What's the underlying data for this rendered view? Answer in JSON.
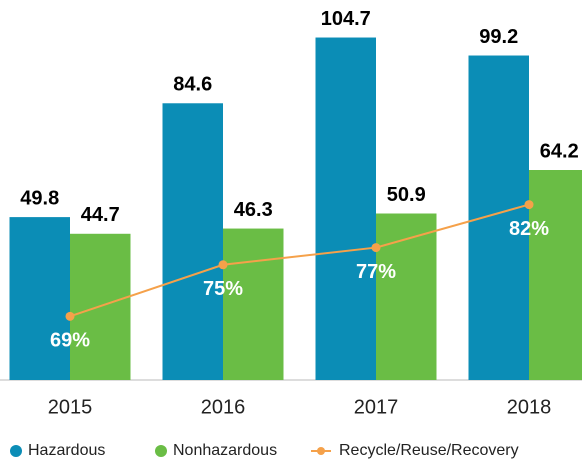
{
  "chart_data": {
    "type": "bar",
    "categories": [
      "2015",
      "2016",
      "2017",
      "2018"
    ],
    "series": [
      {
        "name": "Hazardous",
        "color": "#0b8db6",
        "values": [
          49.8,
          84.6,
          104.7,
          99.2
        ]
      },
      {
        "name": "Nonhazardous",
        "color": "#6abd45",
        "values": [
          44.7,
          46.3,
          50.9,
          64.2
        ]
      },
      {
        "name": "Recycle/Reuse/Recovery",
        "color": "#f5a14a",
        "type": "line",
        "axis": "y2",
        "values": [
          69,
          75,
          77,
          82
        ],
        "value_labels": [
          "69%",
          "75%",
          "77%",
          "82%"
        ]
      }
    ],
    "ylim": [
      0,
      107
    ],
    "y2lim": [
      61.6,
      102.3
    ]
  }
}
